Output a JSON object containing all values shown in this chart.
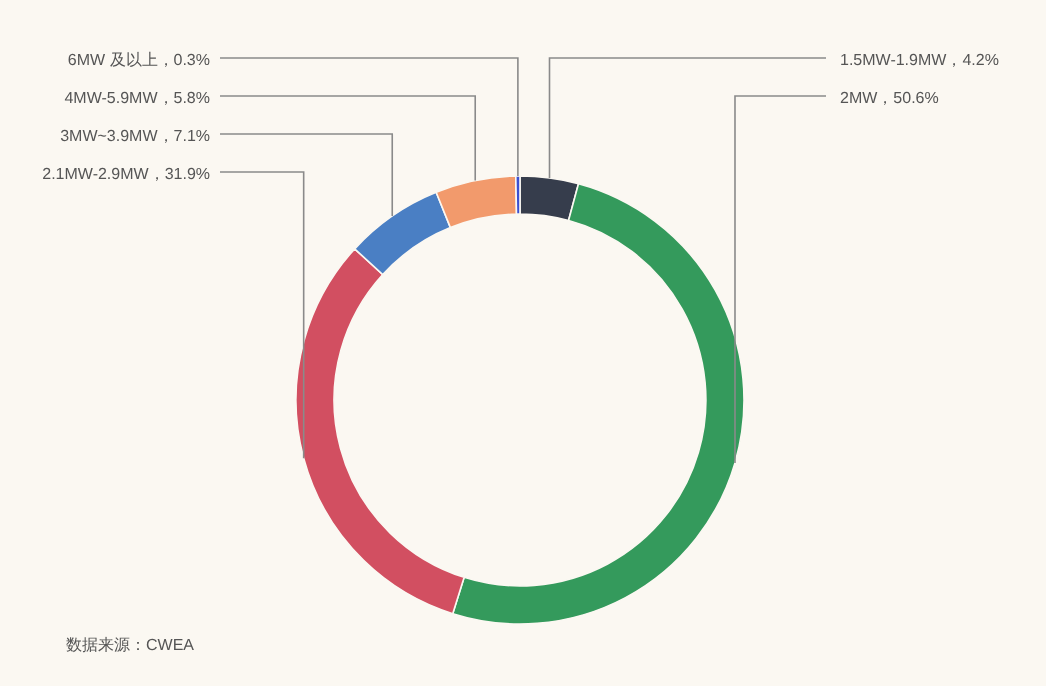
{
  "chart_data": {
    "type": "donut",
    "categories": [
      "1.5MW-1.9MW",
      "2MW",
      "2.1MW-2.9MW",
      "3MW~3.9MW",
      "4MW-5.9MW",
      "6MW 及以上"
    ],
    "values": [
      4.2,
      50.6,
      31.9,
      7.1,
      5.8,
      0.3
    ],
    "colors": [
      "#363d4c",
      "#349a5c",
      "#d24f61",
      "#4a7fc4",
      "#f29a6c",
      "#3b4fd0"
    ],
    "value_labels": [
      "4.2%",
      "50.6%",
      "31.9%",
      "7.1%",
      "5.8%",
      "0.3%"
    ],
    "annotations": [
      "数据来源：CWEA"
    ]
  }
}
